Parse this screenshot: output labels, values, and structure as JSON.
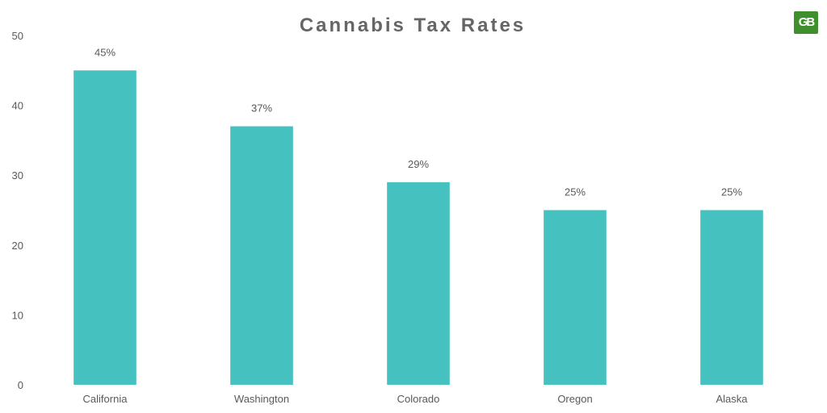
{
  "logo": {
    "text": "GB",
    "color": "#3f8f2f"
  },
  "colors": {
    "bar": "#45c1bf",
    "text": "#595959",
    "title": "#666666",
    "axis_text": "#595959"
  },
  "chart_data": {
    "type": "bar",
    "title": "Cannabis Tax Rates",
    "xlabel": "",
    "ylabel": "",
    "categories": [
      "California",
      "Washington",
      "Colorado",
      "Oregon",
      "Alaska"
    ],
    "values": [
      45,
      37,
      29,
      25,
      25
    ],
    "value_labels": [
      "45%",
      "37%",
      "29%",
      "25%",
      "25%"
    ],
    "ylim": [
      0,
      50
    ],
    "yticks": [
      0,
      10,
      20,
      30,
      40,
      50
    ],
    "grid": false,
    "legend": "none"
  }
}
